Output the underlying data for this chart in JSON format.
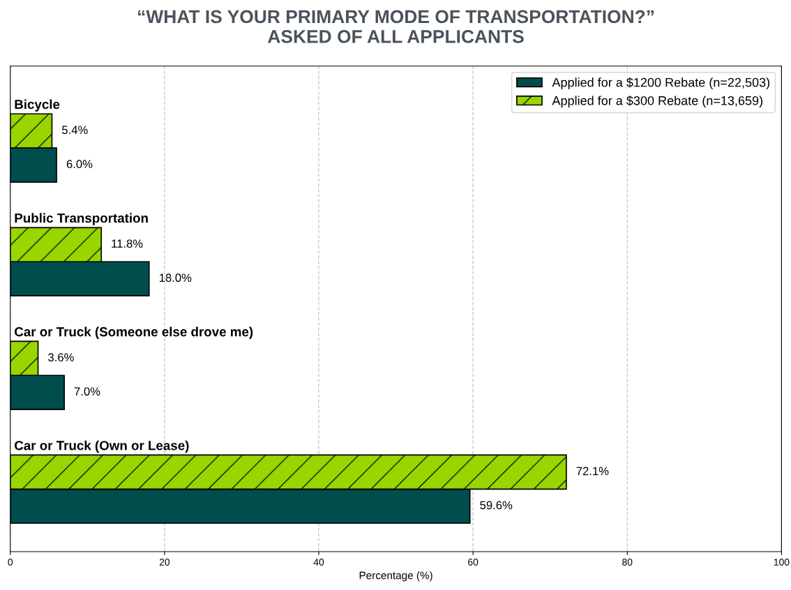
{
  "chart_data": {
    "type": "bar",
    "orientation": "horizontal",
    "title": "“WHAT IS YOUR PRIMARY MODE OF TRANSPORTATION?”\nASKED OF ALL APPLICANTS",
    "xlabel": "Percentage (%)",
    "categories": [
      "Bicycle",
      "Public Transportation",
      "Car or Truck (Someone else drove me)",
      "Car or Truck (Own or Lease)"
    ],
    "series": [
      {
        "name": "Applied for a $1200 Rebate (n=22,503)",
        "color": "#004d4d",
        "values": [
          6.0,
          18.0,
          7.0,
          59.6
        ],
        "value_labels": [
          "6.0%",
          "18.0%",
          "7.0%",
          "59.6%"
        ]
      },
      {
        "name": "Applied for a $300 Rebate (n=13,659)",
        "color": "#99d600",
        "values": [
          5.4,
          11.8,
          3.6,
          72.1
        ],
        "value_labels": [
          "5.4%",
          "11.8%",
          "3.6%",
          "72.1%"
        ]
      }
    ],
    "xlim": [
      0,
      100
    ],
    "xticks": [
      0,
      20,
      40,
      60,
      80,
      100
    ],
    "grid": "x",
    "legend": "top right",
    "tick_labels": "x"
  }
}
